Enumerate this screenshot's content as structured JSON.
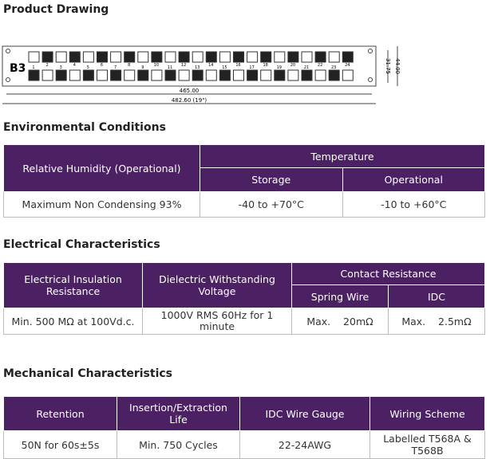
{
  "drawing": {
    "title": "Product Drawing",
    "logo": "B3",
    "ports": [
      "1",
      "2",
      "3",
      "4",
      "5",
      "6",
      "7",
      "8",
      "9",
      "10",
      "11",
      "12",
      "13",
      "14",
      "15",
      "16",
      "17",
      "18",
      "19",
      "20",
      "21",
      "22",
      "23",
      "24"
    ],
    "width_inner": "465.00",
    "width_outer": "482.60 (19\")",
    "height_inner": "31.75",
    "height_outer": "44.00"
  },
  "environmental": {
    "title": "Environmental Conditions",
    "headers": [
      "Relative Humidity (Operational)",
      "Temperature",
      "Storage",
      "Operational"
    ],
    "rows": [
      [
        "Maximum Non Condensing 93%",
        "-40 to +70°C",
        "-10 to +60°C"
      ]
    ]
  },
  "electrical": {
    "title": "Electrical Characteristics",
    "headers": [
      "Electrical Insulation Resistance",
      "Dielectric Withstanding Voltage",
      "Contact Resistance",
      "Spring Wire",
      "IDC"
    ],
    "rows": [
      [
        "Min. 500 MΩ at 100Vd.c.",
        "1000V RMS 60Hz for 1 minute",
        "Max.    20mΩ",
        "Max.    2.5mΩ"
      ]
    ]
  },
  "mechanical": {
    "title": "Mechanical Characteristics",
    "headers": [
      "Retention",
      "Insertion/Extraction Life",
      "IDC Wire Gauge",
      "Wiring Scheme"
    ],
    "rows": [
      [
        "50N for 60s±5s",
        "Min. 750 Cycles",
        "22-24AWG",
        "Labelled T568A & T568B"
      ]
    ]
  }
}
